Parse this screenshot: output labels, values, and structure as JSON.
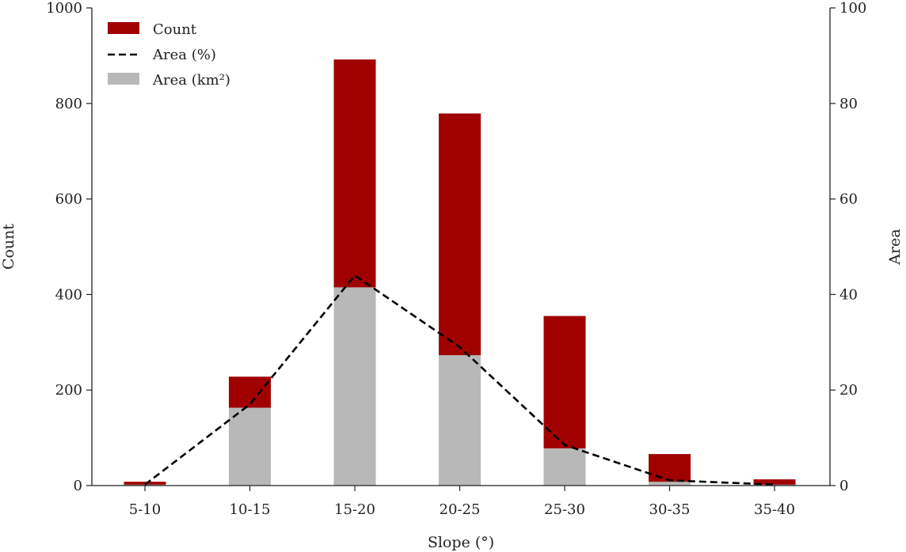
{
  "chart_data": {
    "type": "bar",
    "categories": [
      "5-10",
      "10-15",
      "15-20",
      "20-25",
      "25-30",
      "30-35",
      "35-40"
    ],
    "series": [
      {
        "name": "Count",
        "kind": "bar",
        "axis": "left",
        "values": [
          8,
          228,
          892,
          779,
          355,
          66,
          13
        ]
      },
      {
        "name": "Area (km²)",
        "kind": "bar",
        "axis": "left",
        "values": [
          2,
          163,
          415,
          273,
          78,
          8,
          2
        ]
      },
      {
        "name": "Area (%)",
        "kind": "line",
        "axis": "right",
        "style": "dashed",
        "values": [
          0.2,
          17,
          44,
          29,
          8.5,
          1.1,
          0.2
        ]
      }
    ],
    "xlabel": "Slope (°)",
    "ylabel": "Count",
    "ylabel_right": "Area",
    "ylim": [
      0,
      1000
    ],
    "ylim_right": [
      0,
      100
    ],
    "yticks": [
      0,
      200,
      400,
      600,
      800,
      1000
    ],
    "yticks_right": [
      0,
      20,
      40,
      60,
      80,
      100
    ],
    "legend_position": "top-left",
    "grid": false,
    "colors": {
      "count": "#a00000",
      "area_km2": "#b8b8b8",
      "area_pct": "#000000",
      "axis": "#222222"
    }
  }
}
